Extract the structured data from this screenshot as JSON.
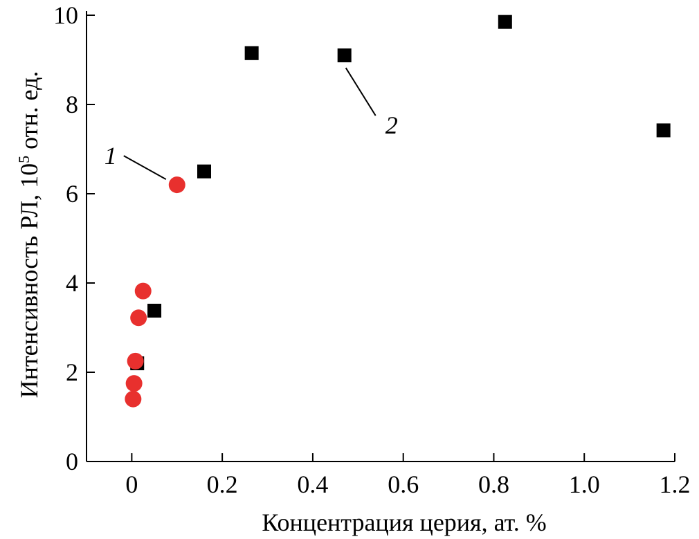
{
  "chart_data": {
    "type": "scatter",
    "xlabel": "Концентрация церия, ат. %",
    "ylabel_main": "Интенсивность РЛ, 10",
    "ylabel_sup": "5",
    "ylabel_tail": " отн. ед.",
    "xlim": [
      -0.1,
      1.2
    ],
    "ylim": [
      0,
      10
    ],
    "x_ticks": [
      0,
      0.2,
      0.4,
      0.6,
      0.8,
      1.0,
      1.2
    ],
    "x_tick_labels": [
      "0",
      "0.2",
      "0.4",
      "0.6",
      "0.8",
      "1.0",
      "1.2"
    ],
    "y_ticks": [
      0,
      2,
      4,
      6,
      8,
      10
    ],
    "y_tick_labels": [
      "0",
      "2",
      "4",
      "6",
      "8",
      "10"
    ],
    "grid": false,
    "series": [
      {
        "label": "1",
        "marker": "circle",
        "color": "#e8302e",
        "points": [
          {
            "x": 0.003,
            "y": 1.4
          },
          {
            "x": 0.005,
            "y": 1.75
          },
          {
            "x": 0.008,
            "y": 2.25
          },
          {
            "x": 0.015,
            "y": 3.22
          },
          {
            "x": 0.025,
            "y": 3.82
          },
          {
            "x": 0.1,
            "y": 6.2
          }
        ]
      },
      {
        "label": "2",
        "marker": "square",
        "color": "#000000",
        "points": [
          {
            "x": 0.012,
            "y": 2.2
          },
          {
            "x": 0.05,
            "y": 3.38
          },
          {
            "x": 0.16,
            "y": 6.5
          },
          {
            "x": 0.265,
            "y": 9.15
          },
          {
            "x": 0.47,
            "y": 9.1
          },
          {
            "x": 0.825,
            "y": 9.85
          },
          {
            "x": 1.175,
            "y": 7.42
          }
        ]
      }
    ],
    "annotations": [
      {
        "text": "1",
        "series": 0,
        "point": 5
      },
      {
        "text": "2",
        "series": 1,
        "point": 4
      }
    ]
  }
}
